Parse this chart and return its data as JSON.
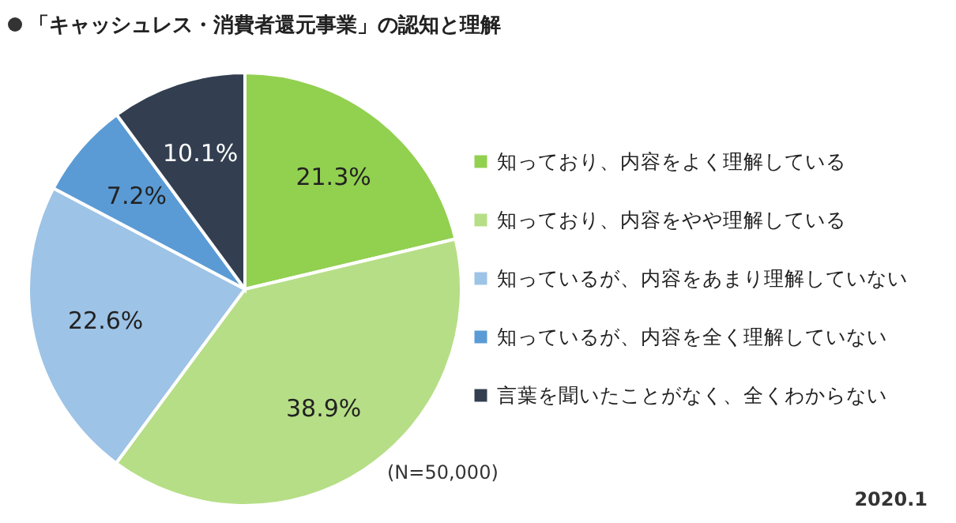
{
  "chart_data": {
    "type": "pie",
    "title": "「キャッシュレス・消費者還元事業」の認知と理解",
    "categories": [
      "知っており、内容をよく理解している",
      "知っており、内容をやや理解している",
      "知っているが、内容をあまり理解していない",
      "知っているが、内容を全く理解していない",
      "言葉を聞いたことがなく、全くわからない"
    ],
    "values": [
      21.3,
      38.9,
      22.6,
      7.2,
      10.1
    ],
    "value_labels": [
      "21.3%",
      "38.9%",
      "22.6%",
      "7.2%",
      "10.1%"
    ],
    "colors": [
      "#92d050",
      "#b6de86",
      "#9dc3e6",
      "#5b9bd5",
      "#333f50"
    ],
    "legend": "right",
    "annotations": [
      "(N=50,000)",
      "2020.1"
    ]
  }
}
